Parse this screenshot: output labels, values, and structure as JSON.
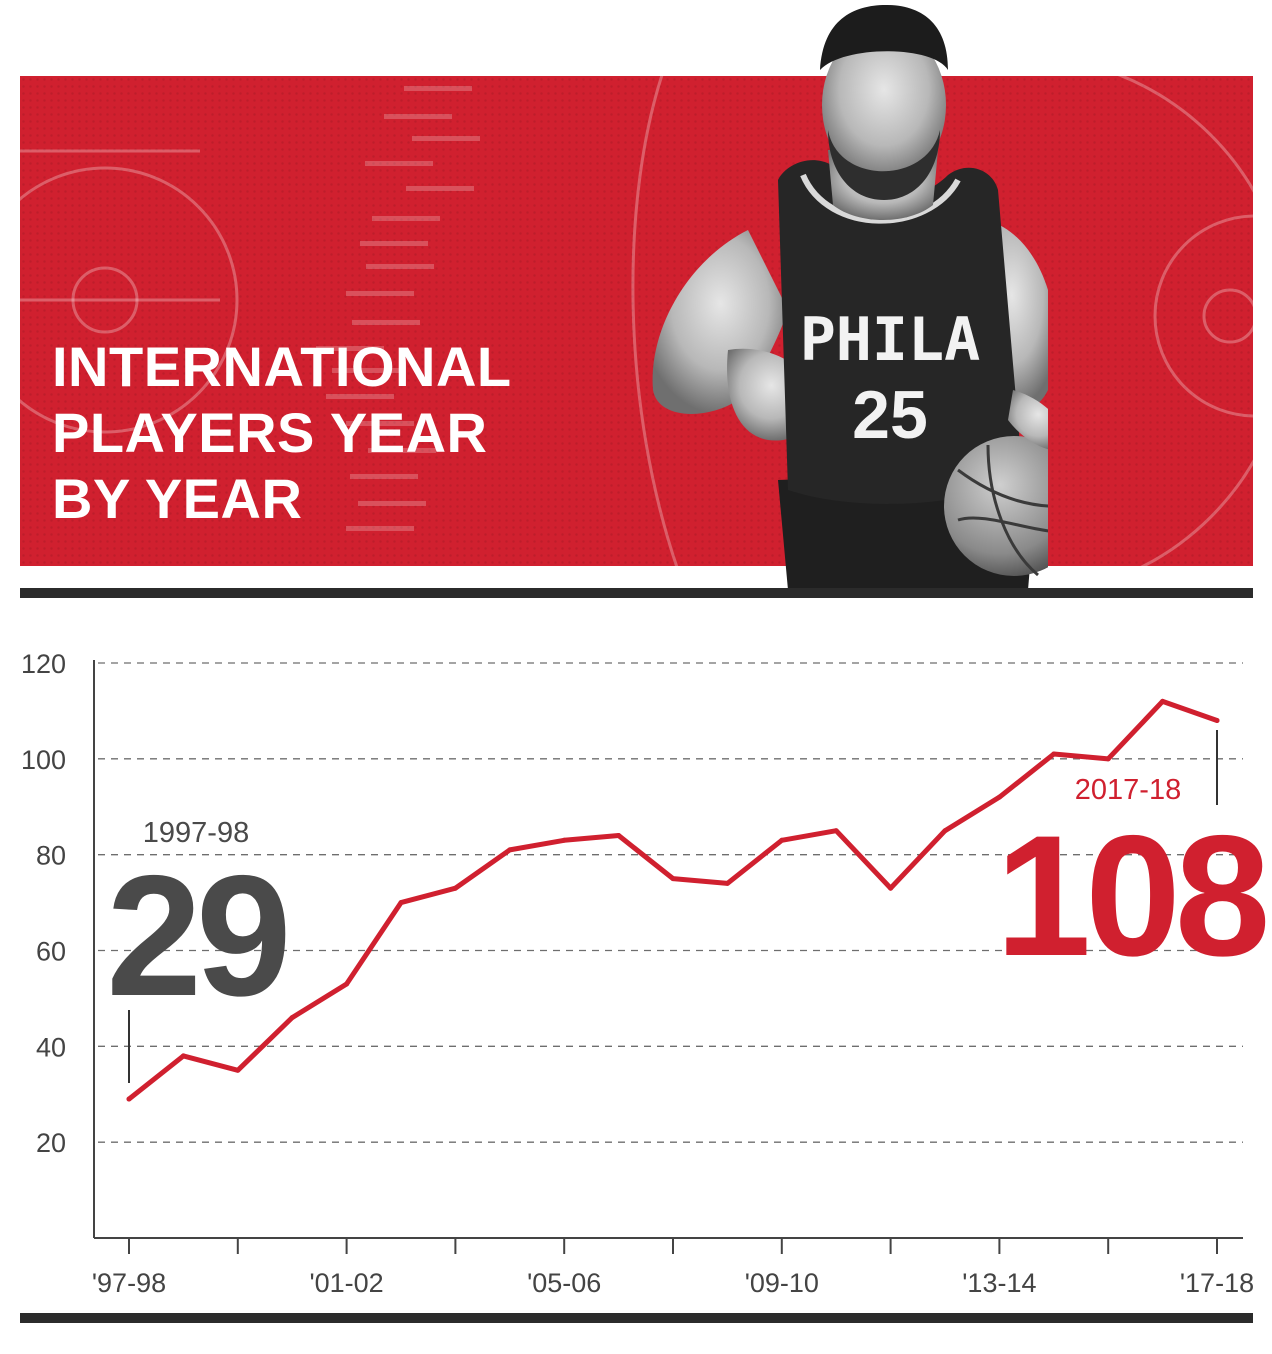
{
  "banner": {
    "title_lines": [
      "INTERNATIONAL",
      "PLAYERS YEAR",
      "BY YEAR"
    ],
    "jersey_text": "PHILA",
    "jersey_number": "25"
  },
  "colors": {
    "accent": "#d0202f",
    "dark": "#4a4a4a",
    "rule": "#2b2b2b"
  },
  "callouts": {
    "start": {
      "season": "1997-98",
      "value": "29"
    },
    "end": {
      "season": "2017-18",
      "value": "108"
    }
  },
  "chart_data": {
    "type": "line",
    "title": "INTERNATIONAL PLAYERS YEAR BY YEAR",
    "xlabel": "",
    "ylabel": "",
    "x": [
      "1997-98",
      "1998-99",
      "1999-00",
      "2000-01",
      "2001-02",
      "2002-03",
      "2003-04",
      "2004-05",
      "2005-06",
      "2006-07",
      "2007-08",
      "2008-09",
      "2009-10",
      "2010-11",
      "2011-12",
      "2012-13",
      "2013-14",
      "2014-15",
      "2015-16",
      "2016-17",
      "2017-18"
    ],
    "x_tick_labels": [
      "'97-98",
      "'01-02",
      "'05-06",
      "'09-10",
      "'13-14",
      "'17-18"
    ],
    "x_tick_label_every": 4,
    "series": [
      {
        "values": [
          29,
          38,
          35,
          46,
          53,
          70,
          73,
          81,
          83,
          84,
          75,
          74,
          83,
          85,
          73,
          85,
          92,
          101,
          100,
          112,
          108
        ],
        "color": "#d0202f"
      }
    ],
    "ylim": [
      0,
      120
    ],
    "yticks": [
      20,
      40,
      60,
      80,
      100,
      120
    ],
    "grid": "horizontal-dashed",
    "legend": "none"
  }
}
